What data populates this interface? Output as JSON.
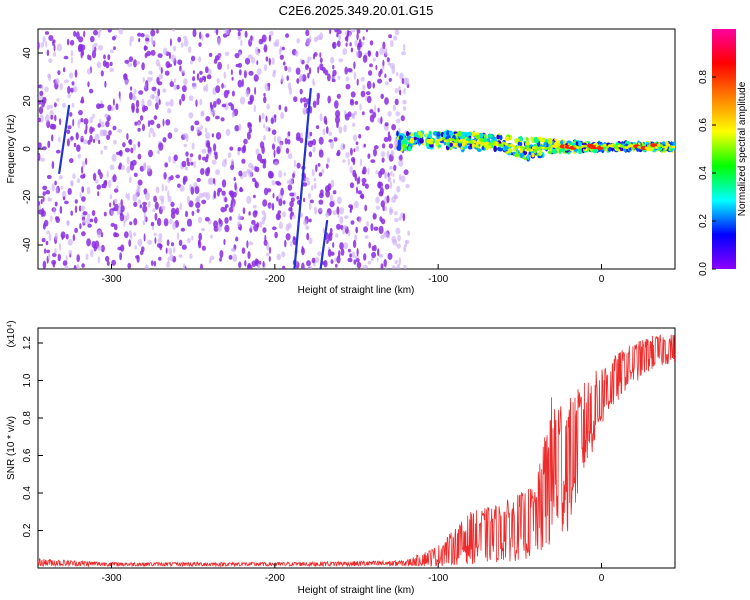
{
  "title": "C2E6.2025.349.20.01.G15",
  "colors": {
    "scatter_violet": "#8a2be2",
    "scatter_light": "#c9a8f5",
    "snr_line": "#ee2a2a",
    "colorbar": [
      "#8b00ff",
      "#0000ff",
      "#00ffff",
      "#00ff00",
      "#ffff00",
      "#ff8000",
      "#ff0000",
      "#ff00a0"
    ]
  },
  "chart_data": [
    {
      "type": "heatmap",
      "name": "spectrogram",
      "xlabel": "Height of straight line (km)",
      "ylabel": "Frequency (Hz)",
      "xlim": [
        -345,
        45
      ],
      "ylim": [
        -50,
        50
      ],
      "xticks": [
        -300,
        -200,
        -100,
        0
      ],
      "xtick_labels": [
        "-300",
        "-200",
        "-100",
        "0"
      ],
      "yticks": [
        -40,
        -20,
        0,
        20,
        40
      ],
      "ytick_labels": [
        "-40",
        "-20",
        "0",
        "20",
        "40"
      ],
      "noise_region_x": [
        -345,
        -118
      ],
      "signal_band": [
        {
          "x": -125,
          "freq": 3,
          "width": 7
        },
        {
          "x": -100,
          "freq": 4,
          "width": 6
        },
        {
          "x": -80,
          "freq": 3,
          "width": 7
        },
        {
          "x": -60,
          "freq": 2,
          "width": 6
        },
        {
          "x": -45,
          "freq": 0,
          "width": 9
        },
        {
          "x": -30,
          "freq": 1,
          "width": 5
        },
        {
          "x": -15,
          "freq": 1,
          "width": 4
        },
        {
          "x": 0,
          "freq": 1,
          "width": 3
        },
        {
          "x": 20,
          "freq": 1,
          "width": 3
        },
        {
          "x": 45,
          "freq": 1,
          "width": 3
        }
      ],
      "diagonal_streaks": [
        {
          "x_start": -332,
          "x_end": -326,
          "f_start": -10,
          "f_end": 18
        },
        {
          "x_start": -188,
          "x_end": -178,
          "f_start": -50,
          "f_end": 25
        },
        {
          "x_start": -172,
          "x_end": -168,
          "f_start": -50,
          "f_end": -30
        }
      ],
      "colorbar": {
        "label": "Normalized spectral amplitude",
        "range": [
          0,
          1
        ],
        "ticks": [
          0.0,
          0.2,
          0.4,
          0.6,
          0.8
        ],
        "tick_labels": [
          "0.0",
          "0.2",
          "0.4",
          "0.6",
          "0.8"
        ]
      }
    },
    {
      "type": "line",
      "name": "snr",
      "xlabel": "Height of straight line (km)",
      "ylabel": "SNR (10 * v/v)",
      "scale_label": "(x10⁴)",
      "xlim": [
        -345,
        45
      ],
      "ylim": [
        0,
        1.28
      ],
      "xticks": [
        -300,
        -200,
        -100,
        0
      ],
      "xtick_labels": [
        "-300",
        "-200",
        "-100",
        "0"
      ],
      "yticks": [
        0.2,
        0.4,
        0.6,
        0.8,
        1.0,
        1.2
      ],
      "ytick_labels": [
        "0.2",
        "0.4",
        "0.6",
        "0.8",
        "1.0",
        "1.2"
      ],
      "envelope": [
        {
          "x": -345,
          "low": 0.01,
          "high": 0.05
        },
        {
          "x": -300,
          "low": 0.01,
          "high": 0.03
        },
        {
          "x": -200,
          "low": 0.01,
          "high": 0.03
        },
        {
          "x": -120,
          "low": 0.01,
          "high": 0.04
        },
        {
          "x": -100,
          "low": 0.01,
          "high": 0.12
        },
        {
          "x": -80,
          "low": 0.02,
          "high": 0.3
        },
        {
          "x": -60,
          "low": 0.03,
          "high": 0.35
        },
        {
          "x": -40,
          "low": 0.05,
          "high": 0.45
        },
        {
          "x": -30,
          "low": 0.1,
          "high": 0.95
        },
        {
          "x": -20,
          "low": 0.2,
          "high": 0.9
        },
        {
          "x": -10,
          "low": 0.5,
          "high": 1.0
        },
        {
          "x": 0,
          "low": 0.75,
          "high": 1.08
        },
        {
          "x": 15,
          "low": 0.95,
          "high": 1.18
        },
        {
          "x": 30,
          "low": 1.05,
          "high": 1.24
        },
        {
          "x": 45,
          "low": 1.1,
          "high": 1.25
        }
      ]
    }
  ]
}
